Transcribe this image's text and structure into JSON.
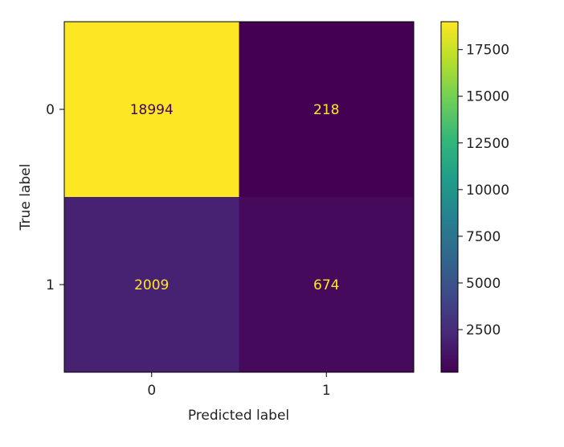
{
  "chart_data": {
    "type": "heatmap",
    "title": "",
    "xlabel": "Predicted label",
    "ylabel": "True label",
    "x_categories": [
      "0",
      "1"
    ],
    "y_categories": [
      "0",
      "1"
    ],
    "values": [
      [
        18994,
        218
      ],
      [
        2009,
        674
      ]
    ],
    "colormap": "viridis",
    "colorbar": {
      "range": [
        218,
        18994
      ],
      "ticks": [
        2500,
        5000,
        7500,
        10000,
        12500,
        15000,
        17500
      ],
      "tick_labels": [
        "2500",
        "5000",
        "7500",
        "10000",
        "12500",
        "15000",
        "17500"
      ]
    },
    "text_colors": {
      "on_dark": "#fde725",
      "on_light": "#440154"
    },
    "grid": false
  }
}
